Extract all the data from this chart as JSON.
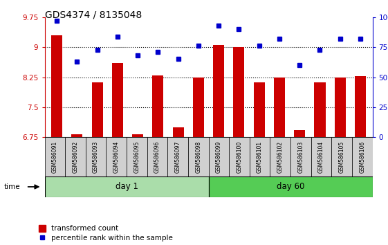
{
  "title": "GDS4374 / 8135048",
  "samples": [
    "GSM586091",
    "GSM586092",
    "GSM586093",
    "GSM586094",
    "GSM586095",
    "GSM586096",
    "GSM586097",
    "GSM586098",
    "GSM586099",
    "GSM586100",
    "GSM586101",
    "GSM586102",
    "GSM586103",
    "GSM586104",
    "GSM586105",
    "GSM586106"
  ],
  "bar_values": [
    9.3,
    6.82,
    8.12,
    8.6,
    6.83,
    8.3,
    7.0,
    8.25,
    9.05,
    9.0,
    8.12,
    8.25,
    6.93,
    8.12,
    8.25,
    8.27
  ],
  "dot_values": [
    97,
    63,
    73,
    84,
    68,
    71,
    65,
    76,
    93,
    90,
    76,
    82,
    60,
    73,
    82,
    82
  ],
  "ylim_left": [
    6.75,
    9.75
  ],
  "ylim_right": [
    0,
    100
  ],
  "yticks_left": [
    6.75,
    7.5,
    8.25,
    9.0,
    9.75
  ],
  "yticks_right": [
    0,
    25,
    50,
    75,
    100
  ],
  "ytick_labels_left": [
    "6.75",
    "7.5",
    "8.25",
    "9",
    "9.75"
  ],
  "ytick_labels_right": [
    "0",
    "25",
    "50",
    "75",
    "100%"
  ],
  "bar_color": "#cc0000",
  "dot_color": "#0000cc",
  "background_color": "#ffffff",
  "day1_color": "#aaddaa",
  "day60_color": "#55cc55",
  "day1_samples": 8,
  "day60_samples": 8,
  "day1_label": "day 1",
  "day60_label": "day 60",
  "legend_bar_label": "transformed count",
  "legend_dot_label": "percentile rank within the sample",
  "time_label": "time",
  "title_fontsize": 10,
  "tick_fontsize": 7.5,
  "sample_fontsize": 5.5,
  "day_fontsize": 8.5
}
